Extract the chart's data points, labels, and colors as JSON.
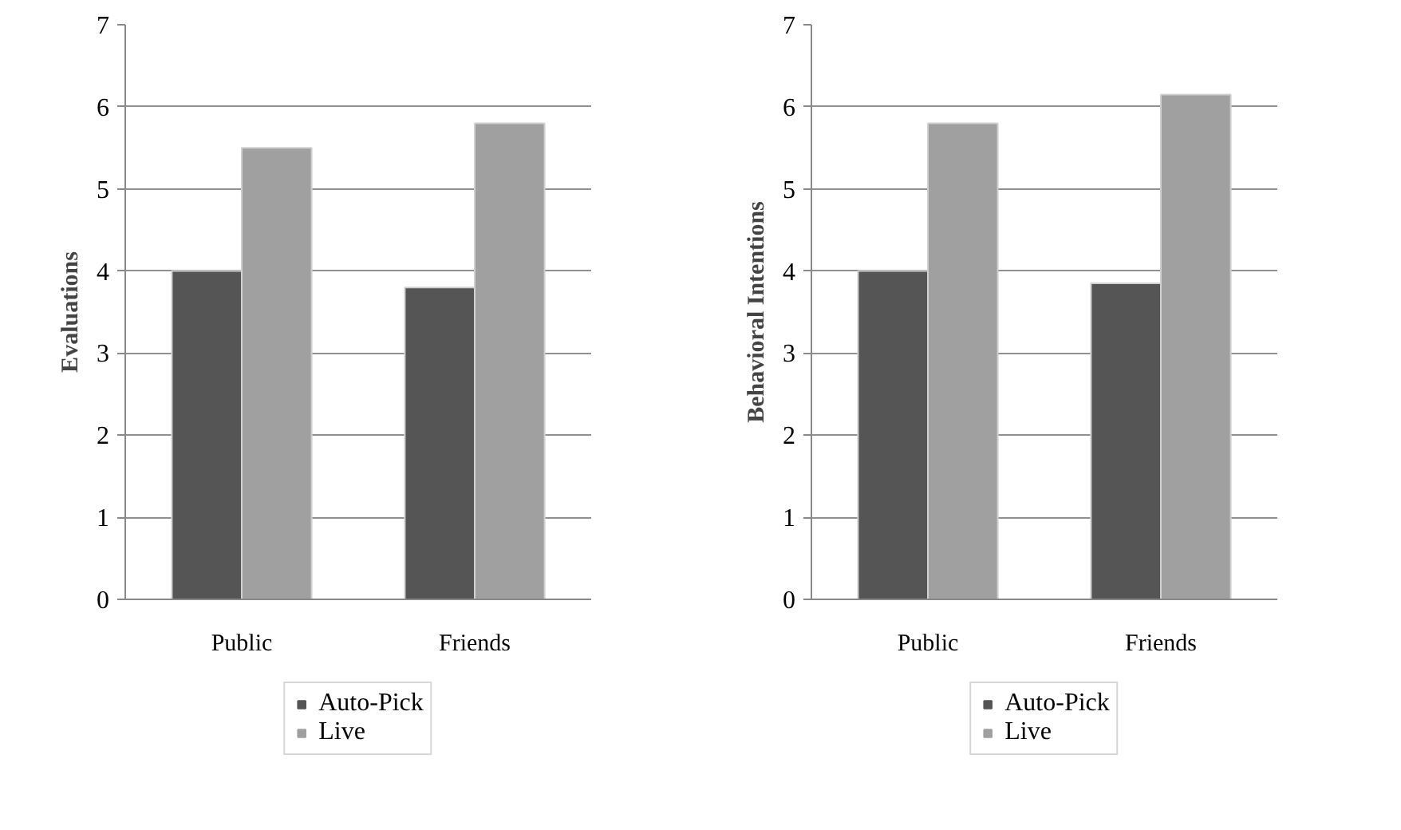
{
  "chart_data": [
    {
      "type": "bar",
      "ylabel": "Evaluations",
      "categories": [
        "Public",
        "Friends"
      ],
      "series": [
        {
          "name": "Auto-Pick",
          "color": "#555555",
          "values": [
            4.0,
            3.8
          ]
        },
        {
          "name": "Live",
          "color": "#a0a0a0",
          "values": [
            5.5,
            5.8
          ]
        }
      ],
      "ylim": [
        0,
        7
      ],
      "yticks": [
        0,
        1,
        2,
        3,
        4,
        5,
        6,
        7
      ],
      "grid": "y",
      "legend": "bottom"
    },
    {
      "type": "bar",
      "ylabel": "Behavioral Intentions",
      "categories": [
        "Public",
        "Friends"
      ],
      "series": [
        {
          "name": "Auto-Pick",
          "color": "#555555",
          "values": [
            4.0,
            3.85
          ]
        },
        {
          "name": "Live",
          "color": "#a0a0a0",
          "values": [
            5.8,
            6.15
          ]
        }
      ],
      "ylim": [
        0,
        7
      ],
      "yticks": [
        0,
        1,
        2,
        3,
        4,
        5,
        6,
        7
      ],
      "grid": "y",
      "legend": "bottom"
    }
  ]
}
